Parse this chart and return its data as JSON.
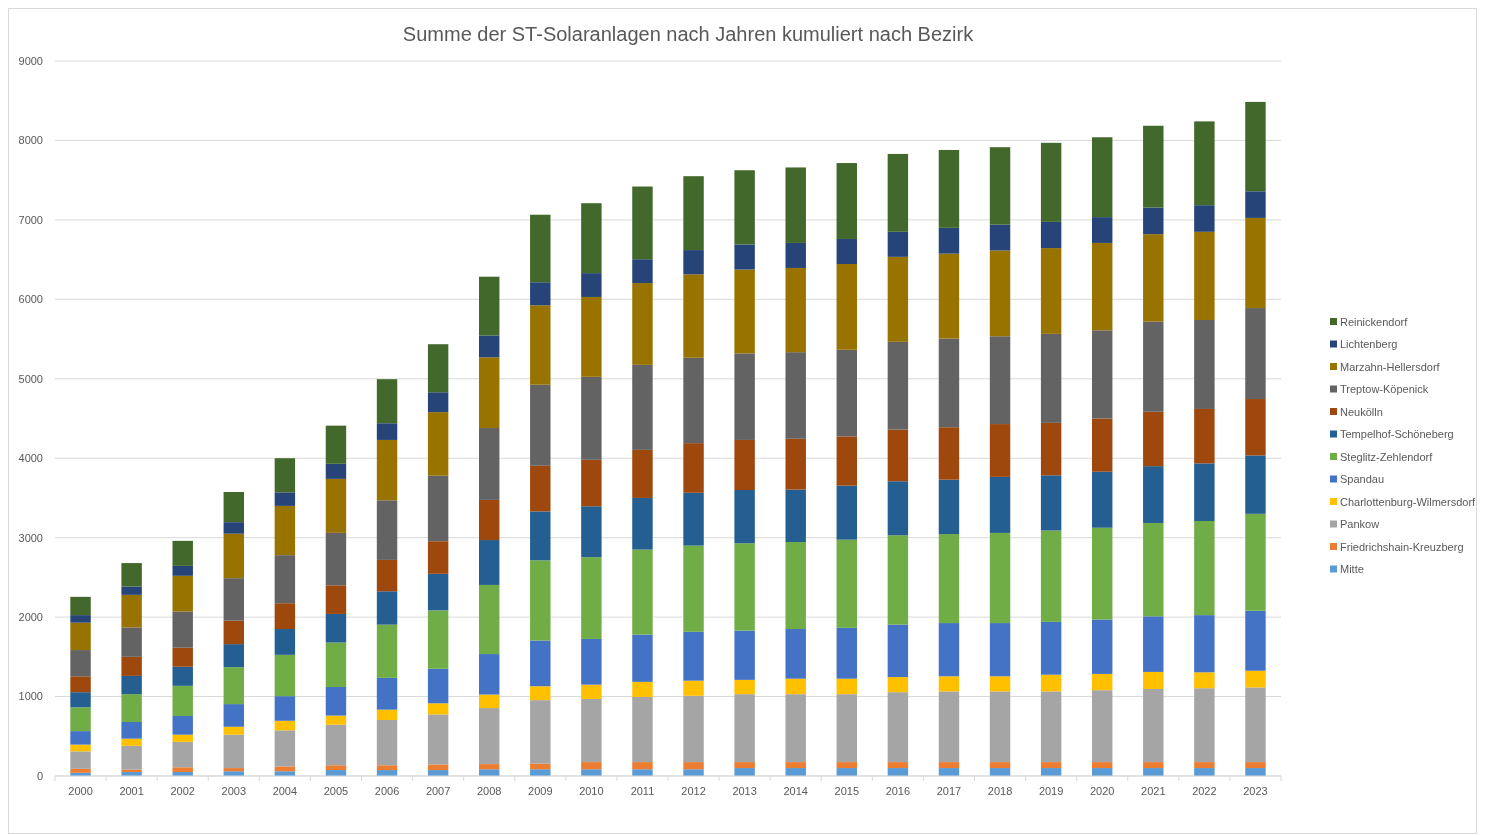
{
  "chart_data": {
    "type": "bar",
    "title": "Summe der ST-Solaranlagen nach Jahren kumuliert nach Bezirk",
    "stacked": true,
    "grid": "y",
    "legend": "right",
    "ylim": [
      0,
      9000
    ],
    "yticks": [
      0,
      1000,
      2000,
      3000,
      4000,
      5000,
      6000,
      7000,
      8000,
      9000
    ],
    "categories": [
      "2000",
      "2001",
      "2002",
      "2003",
      "2004",
      "2005",
      "2006",
      "2007",
      "2008",
      "2009",
      "2010",
      "2011",
      "2012",
      "2013",
      "2014",
      "2015",
      "2016",
      "2017",
      "2018",
      "2019",
      "2020",
      "2021",
      "2022",
      "2023"
    ],
    "series": [
      {
        "name": "Mitte",
        "color": "#5b9bd5",
        "values": [
          40,
          50,
          50,
          60,
          60,
          75,
          75,
          75,
          85,
          85,
          85,
          85,
          85,
          100,
          100,
          100,
          100,
          100,
          100,
          100,
          100,
          100,
          100,
          100
        ]
      },
      {
        "name": "Friedrichshain-Kreuzberg",
        "color": "#ed7d31",
        "values": [
          50,
          30,
          60,
          40,
          60,
          60,
          60,
          70,
          65,
          70,
          90,
          90,
          90,
          75,
          75,
          75,
          75,
          75,
          75,
          75,
          75,
          75,
          75,
          75
        ]
      },
      {
        "name": "Pankow",
        "color": "#a5a5a5",
        "values": [
          220,
          300,
          320,
          420,
          455,
          510,
          570,
          630,
          705,
          800,
          795,
          820,
          835,
          855,
          855,
          855,
          880,
          890,
          890,
          890,
          905,
          920,
          930,
          940
        ]
      },
      {
        "name": "Charlottenburg-Wilmersdorf",
        "color": "#ffc000",
        "values": [
          85,
          90,
          90,
          100,
          120,
          115,
          130,
          140,
          170,
          175,
          180,
          190,
          190,
          180,
          195,
          195,
          190,
          190,
          190,
          210,
          205,
          215,
          200,
          210
        ]
      },
      {
        "name": "Spandau",
        "color": "#4472c4",
        "values": [
          170,
          210,
          235,
          285,
          310,
          360,
          400,
          435,
          510,
          575,
          575,
          595,
          615,
          620,
          625,
          640,
          660,
          670,
          670,
          665,
          685,
          700,
          720,
          755
        ]
      },
      {
        "name": "Steglitz-Zehlendorf",
        "color": "#70ad47",
        "values": [
          300,
          350,
          380,
          465,
          520,
          560,
          670,
          735,
          870,
          1010,
          1030,
          1070,
          1085,
          1100,
          1095,
          1110,
          1125,
          1120,
          1135,
          1150,
          1155,
          1175,
          1185,
          1220
        ]
      },
      {
        "name": "Tempelhof-Schöneberg",
        "color": "#255e91",
        "values": [
          190,
          230,
          240,
          290,
          325,
          360,
          420,
          460,
          565,
          615,
          640,
          650,
          665,
          670,
          660,
          680,
          680,
          685,
          705,
          695,
          705,
          715,
          725,
          735
        ]
      },
      {
        "name": "Neukölln",
        "color": "#9e480e",
        "values": [
          200,
          240,
          240,
          295,
          325,
          360,
          395,
          410,
          505,
          575,
          585,
          605,
          625,
          630,
          640,
          620,
          650,
          660,
          665,
          660,
          670,
          685,
          685,
          710
        ]
      },
      {
        "name": "Treptow-Köpenick",
        "color": "#636363",
        "values": [
          330,
          370,
          455,
          535,
          605,
          660,
          750,
          825,
          905,
          1020,
          1045,
          1070,
          1075,
          1090,
          1090,
          1090,
          1105,
          1115,
          1105,
          1120,
          1110,
          1135,
          1120,
          1145
        ]
      },
      {
        "name": "Marzahn-Hellersdorf",
        "color": "#997300",
        "values": [
          345,
          410,
          450,
          560,
          620,
          680,
          760,
          800,
          890,
          1000,
          1005,
          1030,
          1050,
          1055,
          1060,
          1080,
          1070,
          1070,
          1080,
          1080,
          1100,
          1100,
          1110,
          1135
        ]
      },
      {
        "name": "Lichtenberg",
        "color": "#264478",
        "values": [
          95,
          105,
          125,
          145,
          170,
          190,
          210,
          250,
          275,
          290,
          300,
          300,
          305,
          315,
          315,
          315,
          315,
          325,
          325,
          330,
          325,
          335,
          335,
          335
        ]
      },
      {
        "name": "Reinickendorf",
        "color": "#43682b",
        "values": [
          230,
          295,
          315,
          380,
          430,
          480,
          555,
          605,
          740,
          850,
          880,
          915,
          930,
          935,
          950,
          955,
          980,
          980,
          975,
          995,
          1005,
          1030,
          1055,
          1125
        ]
      }
    ]
  }
}
